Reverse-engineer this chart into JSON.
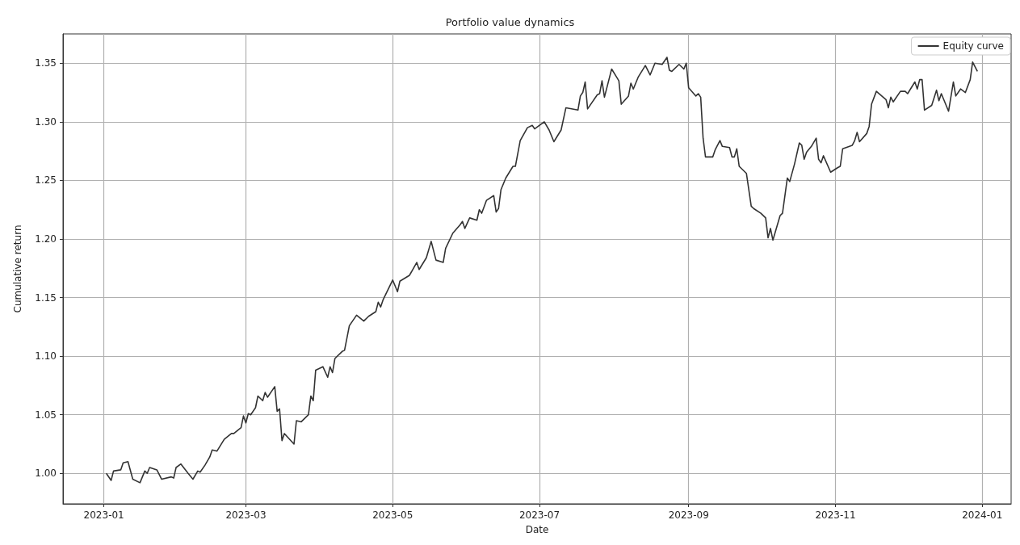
{
  "chart_data": {
    "type": "line",
    "title": "Portfolio value dynamics",
    "xlabel": "Date",
    "ylabel": "Cumulative return",
    "xlim": [
      "2022-12-15",
      "2024-01-13"
    ],
    "xticks": [
      "2023-01",
      "2023-03",
      "2023-05",
      "2023-07",
      "2023-09",
      "2023-11",
      "2024-01"
    ],
    "ylim": [
      0.974,
      1.375
    ],
    "yticks": [
      {
        "value": 1.0,
        "label": "1.00"
      },
      {
        "value": 1.05,
        "label": "1.05"
      },
      {
        "value": 1.1,
        "label": "1.10"
      },
      {
        "value": 1.15,
        "label": "1.15"
      },
      {
        "value": 1.2,
        "label": "1.20"
      },
      {
        "value": 1.25,
        "label": "1.25"
      },
      {
        "value": 1.3,
        "label": "1.30"
      },
      {
        "value": 1.35,
        "label": "1.35"
      }
    ],
    "grid": true,
    "legend": "top right",
    "marker": "none",
    "line_style": "solid",
    "series": [
      {
        "name": "Equity curve",
        "color": "#333333",
        "x": [
          "2023-01-02",
          "2023-01-04",
          "2023-01-05",
          "2023-01-08",
          "2023-01-09",
          "2023-01-11",
          "2023-01-13",
          "2023-01-16",
          "2023-01-17",
          "2023-01-18",
          "2023-01-19",
          "2023-01-20",
          "2023-01-23",
          "2023-01-25",
          "2023-01-29",
          "2023-01-30",
          "2023-01-31",
          "2023-02-02",
          "2023-02-05",
          "2023-02-07",
          "2023-02-09",
          "2023-02-10",
          "2023-02-12",
          "2023-02-14",
          "2023-02-15",
          "2023-02-17",
          "2023-02-20",
          "2023-02-23",
          "2023-02-24",
          "2023-02-27",
          "2023-02-28",
          "2023-03-01",
          "2023-03-02",
          "2023-03-03",
          "2023-03-05",
          "2023-03-06",
          "2023-03-08",
          "2023-03-09",
          "2023-03-10",
          "2023-03-13",
          "2023-03-14",
          "2023-03-15",
          "2023-03-16",
          "2023-03-17",
          "2023-03-21",
          "2023-03-22",
          "2023-03-24",
          "2023-03-27",
          "2023-03-28",
          "2023-03-29",
          "2023-03-30",
          "2023-04-02",
          "2023-04-04",
          "2023-04-05",
          "2023-04-06",
          "2023-04-07",
          "2023-04-10",
          "2023-04-11",
          "2023-04-13",
          "2023-04-16",
          "2023-04-19",
          "2023-04-21",
          "2023-04-24",
          "2023-04-25",
          "2023-04-26",
          "2023-04-27",
          "2023-05-01",
          "2023-05-03",
          "2023-05-04",
          "2023-05-08",
          "2023-05-11",
          "2023-05-12",
          "2023-05-15",
          "2023-05-17",
          "2023-05-19",
          "2023-05-22",
          "2023-05-23",
          "2023-05-26",
          "2023-05-29",
          "2023-05-30",
          "2023-05-31",
          "2023-06-02",
          "2023-06-05",
          "2023-06-06",
          "2023-06-07",
          "2023-06-09",
          "2023-06-12",
          "2023-06-13",
          "2023-06-14",
          "2023-06-15",
          "2023-06-17",
          "2023-06-20",
          "2023-06-21",
          "2023-06-23",
          "2023-06-26",
          "2023-06-28",
          "2023-06-29",
          "2023-07-03",
          "2023-07-05",
          "2023-07-07",
          "2023-07-10",
          "2023-07-12",
          "2023-07-17",
          "2023-07-18",
          "2023-07-19",
          "2023-07-20",
          "2023-07-21",
          "2023-07-25",
          "2023-07-26",
          "2023-07-27",
          "2023-07-28",
          "2023-07-31",
          "2023-08-03",
          "2023-08-04",
          "2023-08-07",
          "2023-08-08",
          "2023-08-09",
          "2023-08-11",
          "2023-08-14",
          "2023-08-16",
          "2023-08-18",
          "2023-08-21",
          "2023-08-23",
          "2023-08-24",
          "2023-08-25",
          "2023-08-28",
          "2023-08-30",
          "2023-08-31",
          "2023-09-01",
          "2023-09-04",
          "2023-09-05",
          "2023-09-06",
          "2023-09-07",
          "2023-09-08",
          "2023-09-11",
          "2023-09-12",
          "2023-09-14",
          "2023-09-15",
          "2023-09-18",
          "2023-09-19",
          "2023-09-20",
          "2023-09-21",
          "2023-09-22",
          "2023-09-25",
          "2023-09-27",
          "2023-09-28",
          "2023-10-01",
          "2023-10-03",
          "2023-10-04",
          "2023-10-05",
          "2023-10-06",
          "2023-10-09",
          "2023-10-10",
          "2023-10-12",
          "2023-10-13",
          "2023-10-15",
          "2023-10-17",
          "2023-10-18",
          "2023-10-19",
          "2023-10-20",
          "2023-10-22",
          "2023-10-24",
          "2023-10-25",
          "2023-10-26",
          "2023-10-27",
          "2023-10-30",
          "2023-11-02",
          "2023-11-03",
          "2023-11-04",
          "2023-11-08",
          "2023-11-09",
          "2023-11-10",
          "2023-11-11",
          "2023-11-14",
          "2023-11-15",
          "2023-11-16",
          "2023-11-18",
          "2023-11-22",
          "2023-11-23",
          "2023-11-24",
          "2023-11-25",
          "2023-11-28",
          "2023-11-30",
          "2023-12-01",
          "2023-12-04",
          "2023-12-05",
          "2023-12-06",
          "2023-12-07",
          "2023-12-08",
          "2023-12-11",
          "2023-12-13",
          "2023-12-14",
          "2023-12-15",
          "2023-12-18",
          "2023-12-20",
          "2023-12-21",
          "2023-12-23",
          "2023-12-25",
          "2023-12-27",
          "2023-12-28",
          "2023-12-30"
        ],
        "values": [
          1.0,
          0.994,
          1.002,
          1.003,
          1.009,
          1.01,
          0.995,
          0.992,
          0.997,
          1.002,
          1.0,
          1.005,
          1.003,
          0.995,
          0.997,
          0.996,
          1.005,
          1.008,
          1.0,
          0.995,
          1.002,
          1.001,
          1.007,
          1.014,
          1.02,
          1.019,
          1.029,
          1.034,
          1.034,
          1.039,
          1.049,
          1.043,
          1.051,
          1.05,
          1.056,
          1.066,
          1.062,
          1.069,
          1.065,
          1.074,
          1.053,
          1.055,
          1.028,
          1.034,
          1.025,
          1.045,
          1.044,
          1.05,
          1.066,
          1.062,
          1.088,
          1.091,
          1.082,
          1.091,
          1.086,
          1.098,
          1.104,
          1.105,
          1.126,
          1.135,
          1.13,
          1.134,
          1.138,
          1.146,
          1.142,
          1.148,
          1.165,
          1.155,
          1.164,
          1.169,
          1.18,
          1.174,
          1.184,
          1.198,
          1.182,
          1.18,
          1.192,
          1.205,
          1.212,
          1.215,
          1.209,
          1.218,
          1.216,
          1.225,
          1.222,
          1.233,
          1.237,
          1.223,
          1.226,
          1.242,
          1.252,
          1.262,
          1.262,
          1.284,
          1.295,
          1.297,
          1.294,
          1.3,
          1.293,
          1.283,
          1.293,
          1.312,
          1.31,
          1.322,
          1.325,
          1.334,
          1.311,
          1.323,
          1.324,
          1.335,
          1.321,
          1.345,
          1.335,
          1.315,
          1.322,
          1.333,
          1.328,
          1.338,
          1.348,
          1.34,
          1.35,
          1.349,
          1.355,
          1.344,
          1.343,
          1.349,
          1.345,
          1.35,
          1.329,
          1.322,
          1.324,
          1.321,
          1.286,
          1.27,
          1.27,
          1.276,
          1.284,
          1.279,
          1.278,
          1.27,
          1.27,
          1.277,
          1.262,
          1.256,
          1.228,
          1.226,
          1.222,
          1.218,
          1.201,
          1.209,
          1.199,
          1.22,
          1.222,
          1.252,
          1.249,
          1.264,
          1.282,
          1.28,
          1.268,
          1.274,
          1.279,
          1.286,
          1.268,
          1.265,
          1.271,
          1.257,
          1.261,
          1.262,
          1.277,
          1.28,
          1.284,
          1.291,
          1.283,
          1.29,
          1.296,
          1.315,
          1.326,
          1.319,
          1.312,
          1.321,
          1.317,
          1.326,
          1.326,
          1.324,
          1.334,
          1.328,
          1.336,
          1.336,
          1.31,
          1.314,
          1.327,
          1.318,
          1.324,
          1.309,
          1.334,
          1.322,
          1.328,
          1.325,
          1.336,
          1.351,
          1.343
        ]
      }
    ]
  }
}
